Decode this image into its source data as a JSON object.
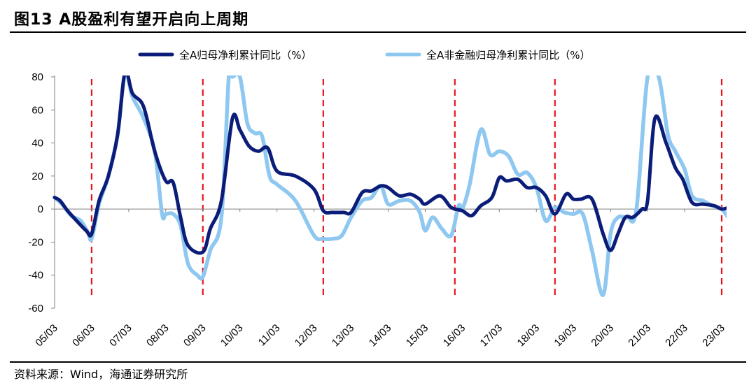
{
  "header": {
    "title": "图13 A股盈利有望开启向上周期"
  },
  "footer": {
    "source": "资料来源：Wind，海通证券研究所"
  },
  "chart_data": {
    "type": "line",
    "title": "图13 A股盈利有望开启向上周期",
    "xlabel": "",
    "ylabel": "",
    "ylim": [
      -60,
      80
    ],
    "yticks": [
      80,
      60,
      40,
      20,
      0,
      -20,
      -40,
      -60
    ],
    "categories": [
      "05/03",
      "06/03",
      "07/03",
      "08/03",
      "09/03",
      "10/03",
      "11/03",
      "12/03",
      "13/03",
      "14/03",
      "15/03",
      "16/03",
      "17/03",
      "18/03",
      "19/03",
      "20/03",
      "21/03",
      "22/03",
      "23/03"
    ],
    "legend_position": "top",
    "colors": {
      "all_a": "#0b1d78",
      "non_fin": "#8ec8f0",
      "markers": "#e8141c"
    },
    "series": [
      {
        "name": "全A归母净利累计同比（%）",
        "x": [
          0,
          0.15,
          0.35,
          0.55,
          0.85,
          1.0,
          1.2,
          1.45,
          1.7,
          1.9,
          2.1,
          2.4,
          2.7,
          3.0,
          3.2,
          3.4,
          3.6,
          4.0,
          4.2,
          4.5,
          4.8,
          5.0,
          5.25,
          5.5,
          5.75,
          6.0,
          6.5,
          7.0,
          7.25,
          7.5,
          7.8,
          8.0,
          8.3,
          8.55,
          8.8,
          9.0,
          9.3,
          9.6,
          9.85,
          10.0,
          10.4,
          10.7,
          11.0,
          11.25,
          11.5,
          11.8,
          12.0,
          12.2,
          12.5,
          12.75,
          13.0,
          13.25,
          13.5,
          13.8,
          14.0,
          14.2,
          14.5,
          14.8,
          15.0,
          15.2,
          15.4,
          15.6,
          15.85,
          16.0,
          16.2,
          16.5,
          16.75,
          16.95,
          17.2,
          17.5,
          17.8,
          18.0,
          18.2
        ],
        "values": [
          7,
          5,
          -1,
          -6,
          -13,
          -15,
          5,
          20,
          45,
          83,
          70,
          62,
          35,
          17,
          16,
          -5,
          -22,
          -26,
          -12,
          5,
          55,
          48,
          38,
          35,
          37,
          23,
          20,
          12,
          -1,
          -2,
          -2,
          -2,
          10,
          11,
          14,
          13,
          8,
          9,
          6,
          3,
          8,
          1,
          -1,
          -4,
          2,
          7,
          19,
          17,
          18,
          13,
          13,
          8,
          -3,
          9,
          6,
          6,
          6,
          -15,
          -25,
          -15,
          -5,
          -5,
          0,
          5,
          55,
          40,
          25,
          18,
          4,
          3,
          2,
          0,
          1
        ]
      },
      {
        "name": "全A非金融归母净利累计同比（%）",
        "x": [
          0,
          0.2,
          0.45,
          0.7,
          0.9,
          1.0,
          1.2,
          1.45,
          1.7,
          1.9,
          2.1,
          2.4,
          2.7,
          2.9,
          3.0,
          3.2,
          3.4,
          3.6,
          3.85,
          4.0,
          4.2,
          4.5,
          4.7,
          4.8,
          5.0,
          5.2,
          5.4,
          5.6,
          5.8,
          6.0,
          6.5,
          7.0,
          7.25,
          7.5,
          7.75,
          8.0,
          8.3,
          8.55,
          8.8,
          9.0,
          9.3,
          9.6,
          9.85,
          10.0,
          10.2,
          10.45,
          10.7,
          10.9,
          11.0,
          11.2,
          11.5,
          11.75,
          12.0,
          12.25,
          12.5,
          12.75,
          13.0,
          13.25,
          13.5,
          13.75,
          14.0,
          14.25,
          14.5,
          14.8,
          15.0,
          15.2,
          15.45,
          15.7,
          16.0,
          16.3,
          16.55,
          16.75,
          17.0,
          17.2,
          17.5,
          17.75,
          18.0,
          18.2
        ],
        "values": [
          7,
          3,
          -4,
          -7,
          -14,
          -18,
          3,
          20,
          45,
          82,
          68,
          55,
          35,
          -3,
          -3,
          -3,
          -10,
          -33,
          -40,
          -41,
          -25,
          -5,
          80,
          80,
          80,
          52,
          46,
          44,
          20,
          15,
          5,
          -16,
          -18,
          -18,
          -16,
          -5,
          5,
          7,
          14,
          3,
          5,
          5,
          -2,
          -13,
          -5,
          -12,
          -16,
          2,
          0,
          15,
          48,
          33,
          35,
          32,
          21,
          22,
          13,
          -7,
          1,
          -2,
          -3,
          -3,
          -25,
          -52,
          -15,
          -5,
          -5,
          0,
          80,
          80,
          45,
          35,
          24,
          8,
          5,
          2,
          0,
          -6
        ]
      }
    ],
    "markers": [
      1.0,
      4.0,
      7.25,
      10.8,
      13.5,
      18.0
    ]
  }
}
